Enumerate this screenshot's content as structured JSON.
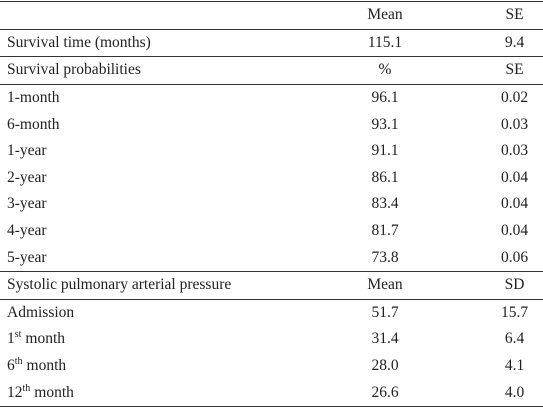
{
  "table": {
    "header": [
      "Mean",
      "SE"
    ],
    "sections": [
      {
        "rows": [
          [
            "Survival time (months)",
            "115.1",
            "9.4"
          ]
        ]
      },
      {
        "header": [
          "Survival probabilities",
          "%",
          "SE"
        ],
        "rows": [
          [
            "1-month",
            "96.1",
            "0.02"
          ],
          [
            "6-month",
            "93.1",
            "0.03"
          ],
          [
            "1-year",
            "91.1",
            "0.03"
          ],
          [
            "2-year",
            "86.1",
            "0.04"
          ],
          [
            "3-year",
            "83.4",
            "0.04"
          ],
          [
            "4-year",
            "81.7",
            "0.04"
          ],
          [
            "5-year",
            "73.8",
            "0.06"
          ]
        ]
      },
      {
        "header": [
          "Systolic pulmonary arterial pressure",
          "Mean",
          "SD"
        ],
        "rows": [
          [
            "Admission",
            "51.7",
            "15.7"
          ],
          [
            {
              "base": "1",
              "sup": "st",
              "rest": "month"
            },
            "31.4",
            "6.4"
          ],
          [
            {
              "base": "6",
              "sup": "th",
              "rest": "month"
            },
            "28.0",
            "4.1"
          ],
          [
            {
              "base": "12",
              "sup": "th",
              "rest": "month"
            },
            "26.6",
            "4.0"
          ]
        ]
      }
    ]
  }
}
